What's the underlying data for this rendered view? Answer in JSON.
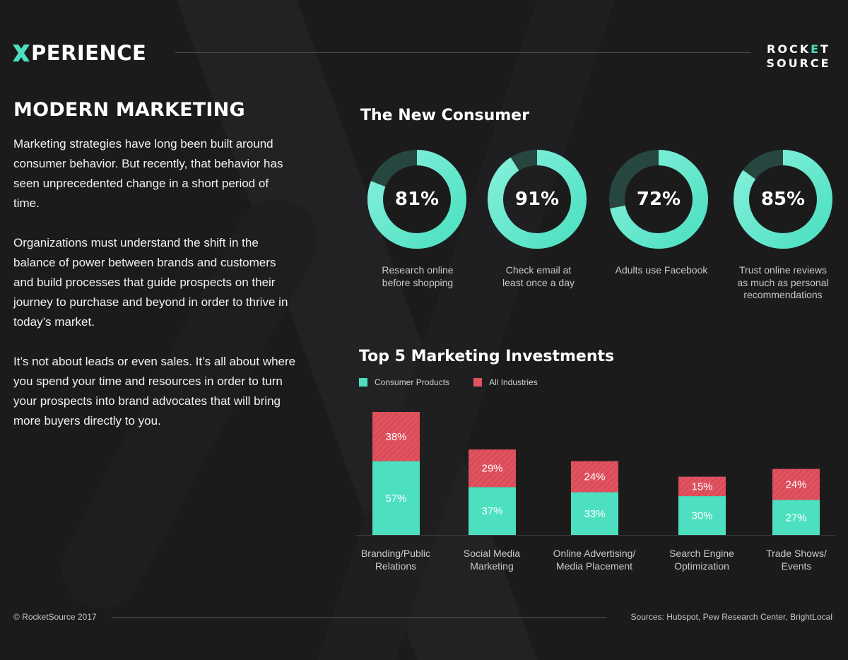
{
  "header": {
    "logo_text": "PERIENCE",
    "brand_top_a": "ROCK",
    "brand_top_accent": "E",
    "brand_top_b": "T",
    "brand_bottom": "SOURCE"
  },
  "intro": {
    "title": "MODERN MARKETING",
    "paragraphs": [
      "Marketing strategies have long been built around consumer behavior. But recently, that behavior has seen unprecedented change in a short period of time.",
      "Organizations must understand the shift in the balance of power between brands and customers and build processes that guide prospects on their journey to purchase and beyond in order to thrive in today’s market.",
      "It’s not about leads or even sales. It’s all about where you spend your time and resources in order to turn your prospects into brand advocates that will bring more buyers directly to you."
    ]
  },
  "colors": {
    "teal": "#4de0c0",
    "teal_light": "#85f0dc",
    "ring_track": "#27463f",
    "red": "#e2525f",
    "red_stripe": "#cc4451"
  },
  "footer": {
    "copyright": "©  RocketSource 2017",
    "sources": "Sources: Hubspot, Pew Research Center, BrightLocal"
  },
  "chart_data": [
    {
      "type": "pie",
      "title": "The New Consumer",
      "items": [
        {
          "value": 81,
          "display": "81%",
          "label_lines": [
            "Research online",
            "before shopping"
          ]
        },
        {
          "value": 91,
          "display": "91%",
          "label_lines": [
            "Check email at",
            "least once a day"
          ]
        },
        {
          "value": 72,
          "display": "72%",
          "label_lines": [
            "Adults use Facebook"
          ]
        },
        {
          "value": 85,
          "display": "85%",
          "label_lines": [
            "Trust online reviews",
            "as much as personal",
            "recommendations"
          ]
        }
      ]
    },
    {
      "type": "bar",
      "stacked": true,
      "title": "Top 5 Marketing Investments",
      "categories": [
        [
          "Branding/Public",
          "Relations"
        ],
        [
          "Social Media",
          "Marketing"
        ],
        [
          "Online Advertising/",
          "Media Placement"
        ],
        [
          "Search Engine",
          "Optimization"
        ],
        [
          "Trade Shows/",
          "Events"
        ]
      ],
      "series": [
        {
          "name": "Consumer Products",
          "values": [
            57,
            37,
            33,
            30,
            27
          ],
          "display": [
            "57%",
            "37%",
            "33%",
            "30%",
            "27%"
          ]
        },
        {
          "name": "All Industries",
          "values": [
            38,
            29,
            24,
            15,
            24
          ],
          "display": [
            "38%",
            "29%",
            "24%",
            "15%",
            "24%"
          ]
        }
      ],
      "legend": "top-left",
      "grid": false
    }
  ]
}
